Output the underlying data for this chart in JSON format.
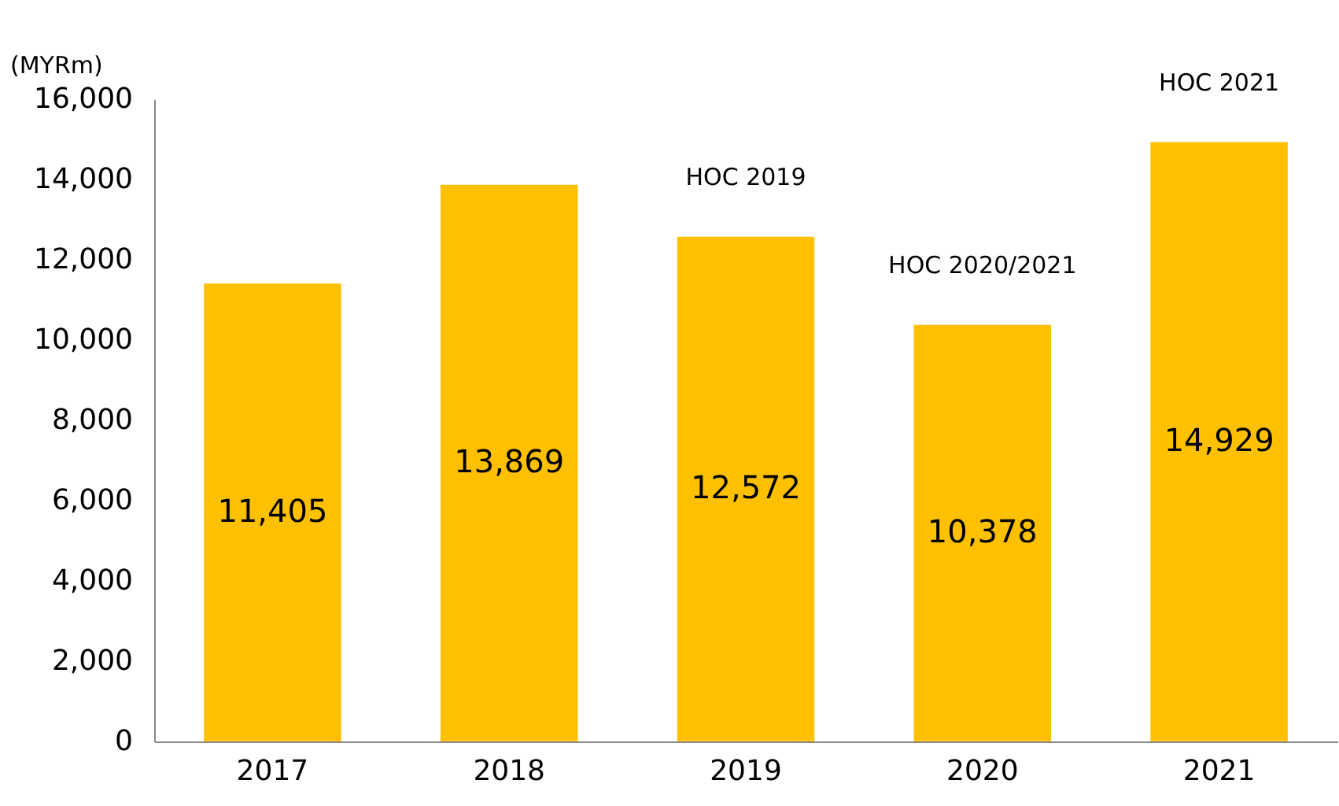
{
  "chart_data": {
    "type": "bar",
    "ylabel": "(MYRm)",
    "categories": [
      "2017",
      "2018",
      "2019",
      "2020",
      "2021"
    ],
    "values": [
      11405,
      13869,
      12572,
      10378,
      14929
    ],
    "value_labels": [
      "11,405",
      "13,869",
      "12,572",
      "10,378",
      "14,929"
    ],
    "color": "#ffc000",
    "ylim": [
      0,
      16000
    ],
    "yticks": [
      {
        "value": 0,
        "label": "0"
      },
      {
        "value": 2000,
        "label": "2,000"
      },
      {
        "value": 4000,
        "label": "4,000"
      },
      {
        "value": 6000,
        "label": "6,000"
      },
      {
        "value": 8000,
        "label": "8,000"
      },
      {
        "value": 10000,
        "label": "10,000"
      },
      {
        "value": 12000,
        "label": "12,000"
      },
      {
        "value": 14000,
        "label": "14,000"
      },
      {
        "value": 16000,
        "label": "16,000"
      }
    ],
    "grid": false,
    "annotations": [
      {
        "text": "HOC 2019",
        "x": "2019",
        "y": 12572
      },
      {
        "text": "HOC 2020/2021",
        "x": "2020",
        "y": 10378
      },
      {
        "text": "HOC 2021",
        "x": "2021",
        "y": 14929
      }
    ]
  }
}
